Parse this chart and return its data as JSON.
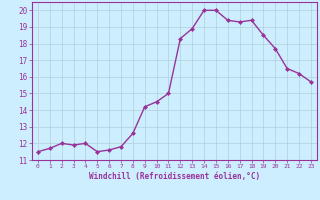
{
  "x": [
    0,
    1,
    2,
    3,
    4,
    5,
    6,
    7,
    8,
    9,
    10,
    11,
    12,
    13,
    14,
    15,
    16,
    17,
    18,
    19,
    20,
    21,
    22,
    23
  ],
  "y": [
    11.5,
    11.7,
    12.0,
    11.9,
    12.0,
    11.5,
    11.6,
    11.8,
    12.6,
    14.2,
    14.5,
    15.0,
    18.3,
    18.9,
    20.0,
    20.0,
    19.4,
    19.3,
    19.4,
    18.5,
    17.7,
    16.5,
    16.2,
    15.7
  ],
  "line_color": "#993399",
  "marker": "D",
  "marker_size": 2,
  "bg_color": "#cceeff",
  "grid_color": "#b0d0d8",
  "xlabel": "Windchill (Refroidissement éolien,°C)",
  "xlabel_color": "#993399",
  "tick_color": "#993399",
  "ylim": [
    11,
    20.5
  ],
  "xlim": [
    -0.5,
    23.5
  ],
  "yticks": [
    11,
    12,
    13,
    14,
    15,
    16,
    17,
    18,
    19,
    20
  ],
  "xticks": [
    0,
    1,
    2,
    3,
    4,
    5,
    6,
    7,
    8,
    9,
    10,
    11,
    12,
    13,
    14,
    15,
    16,
    17,
    18,
    19,
    20,
    21,
    22,
    23
  ],
  "line_width": 1.0,
  "spine_color": "#993399"
}
